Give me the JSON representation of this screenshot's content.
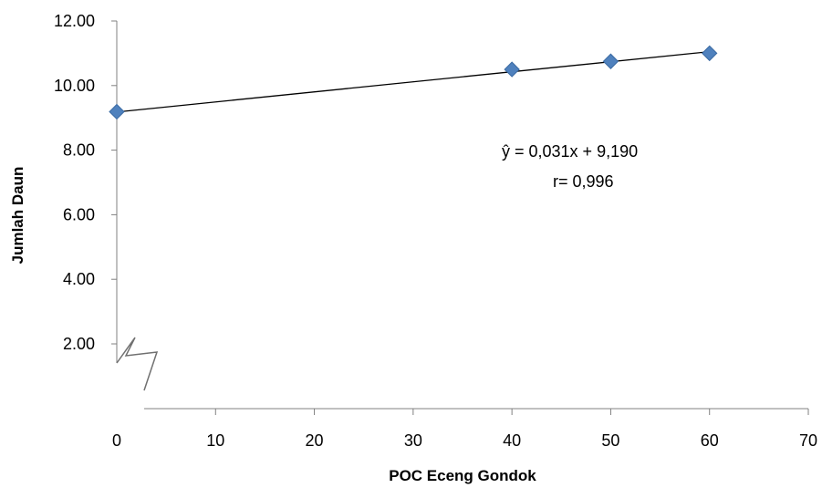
{
  "chart_data": {
    "type": "scatter",
    "title": "",
    "xlabel": "POC Eceng Gondok",
    "ylabel": "Jumlah Daun",
    "x_ticks": [
      "0",
      "10",
      "20",
      "30",
      "40",
      "50",
      "60",
      "70"
    ],
    "y_ticks": [
      "2.00",
      "4.00",
      "6.00",
      "8.00",
      "10.00",
      "12.00"
    ],
    "xlim": [
      0,
      70
    ],
    "ylim": [
      0,
      12
    ],
    "axis_break": "y-axis broken below 2.00",
    "grid": false,
    "legend": "none",
    "series": [
      {
        "marker": "diamond",
        "color": "#4F81BD",
        "x": [
          0,
          40,
          50,
          60
        ],
        "y": [
          9.19,
          10.5,
          10.75,
          11.0
        ]
      }
    ],
    "trendline": {
      "slope": 0.031,
      "intercept": 9.19,
      "x_range": [
        0,
        60
      ],
      "color": "#000000"
    },
    "annotations": [
      "ŷ = 0,031x + 9,190",
      "r= 0,996"
    ]
  }
}
